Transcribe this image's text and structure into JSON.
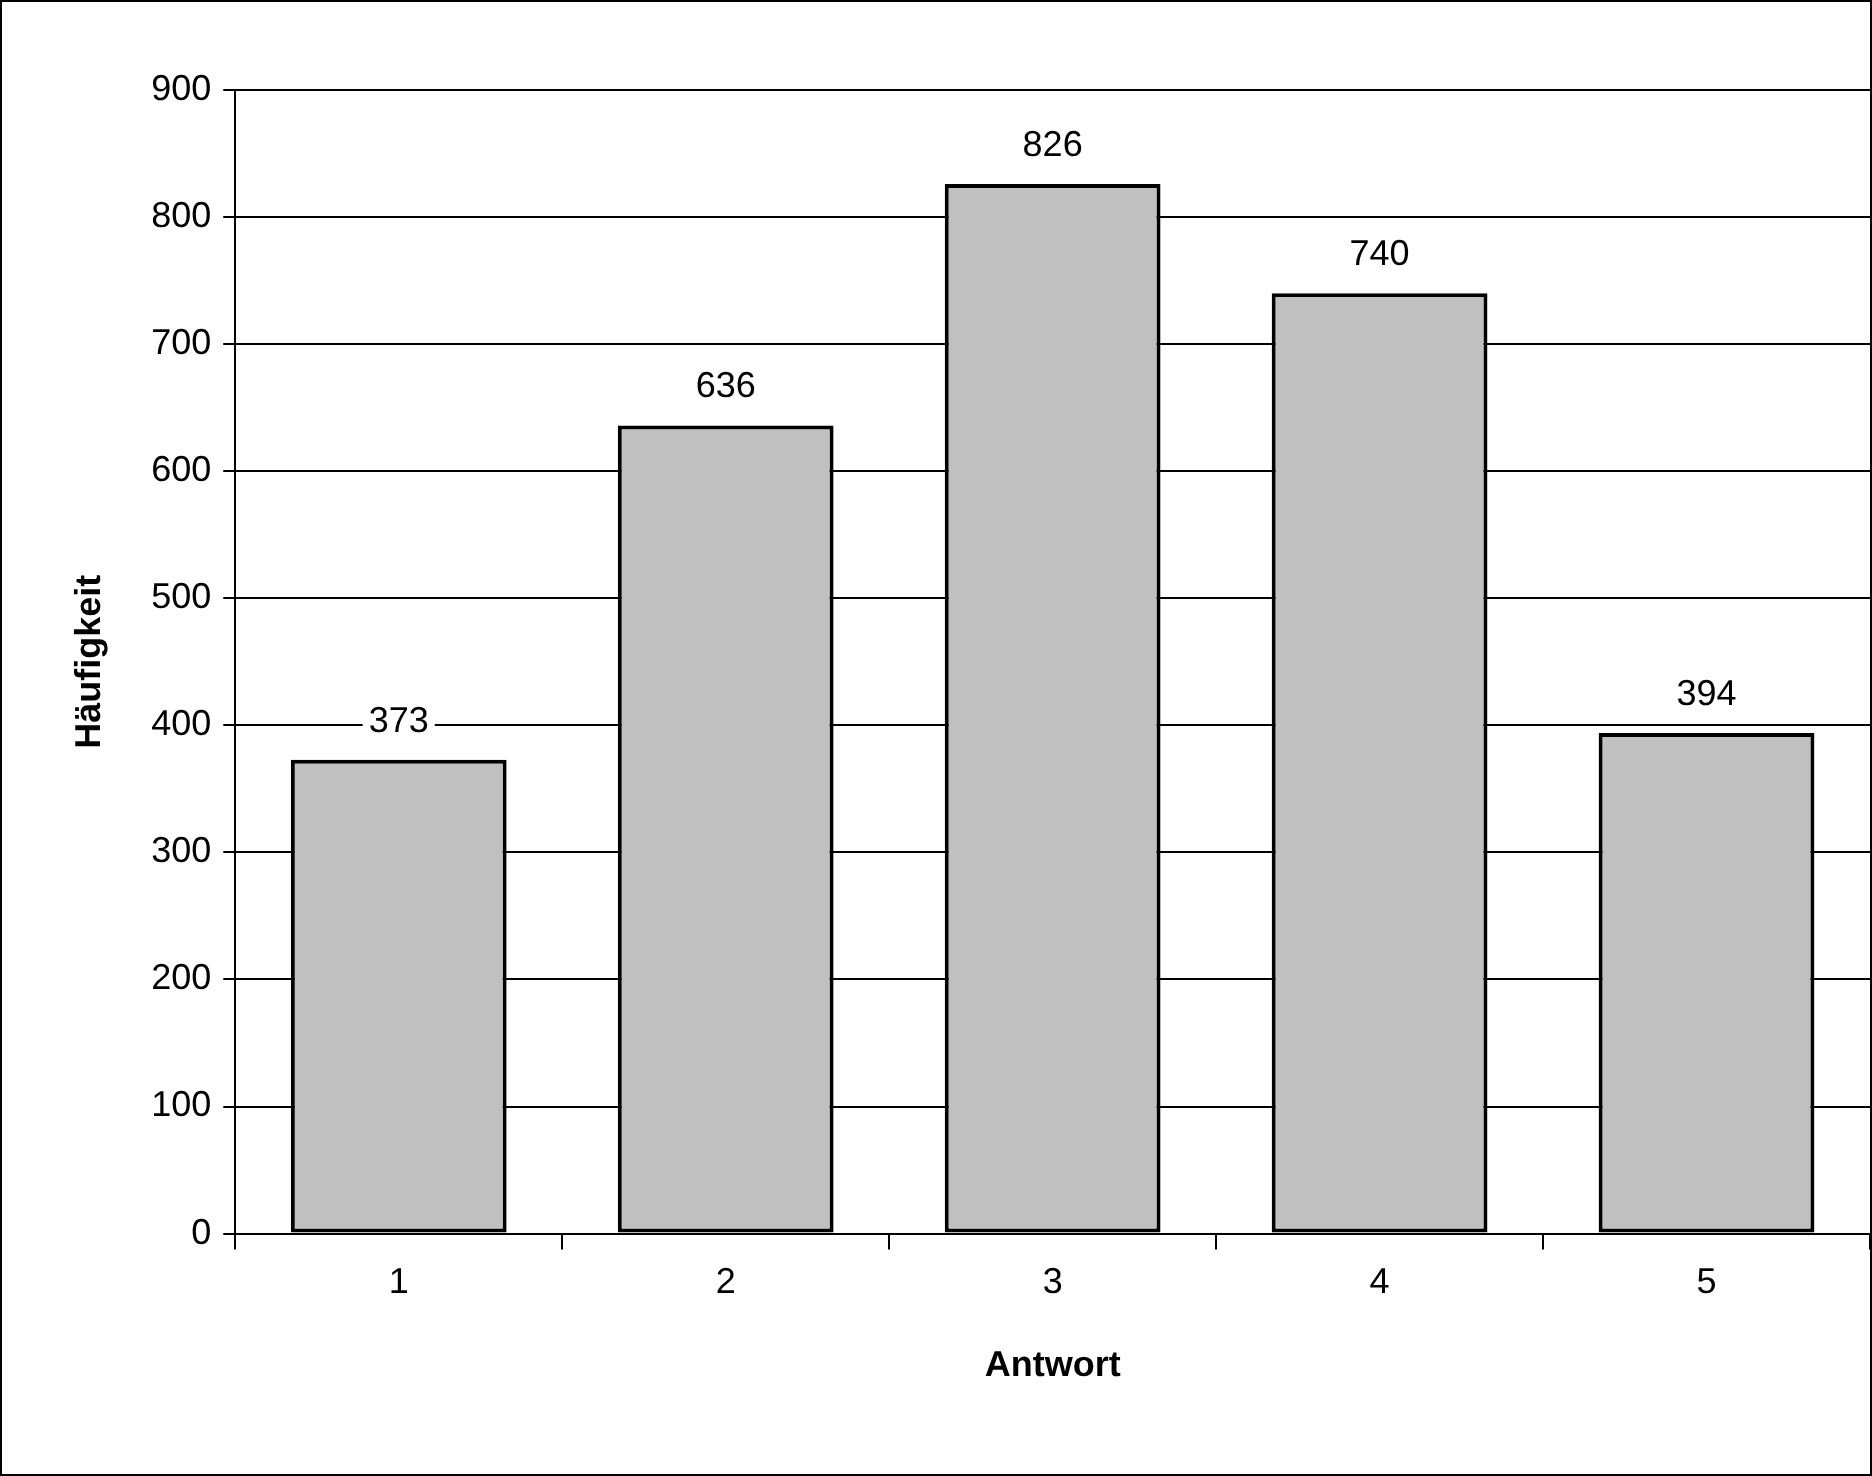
{
  "chart_data": {
    "type": "bar",
    "xlabel": "Antwort",
    "ylabel": "Häufigkeit",
    "categories": [
      "1",
      "2",
      "3",
      "4",
      "5"
    ],
    "values": [
      373,
      636,
      826,
      740,
      394
    ],
    "color": "#c0c0c0",
    "ylim": [
      0,
      900
    ],
    "yticks": [
      0,
      100,
      200,
      300,
      400,
      500,
      600,
      700,
      800,
      900
    ],
    "grid": "y",
    "data_labels": true
  }
}
